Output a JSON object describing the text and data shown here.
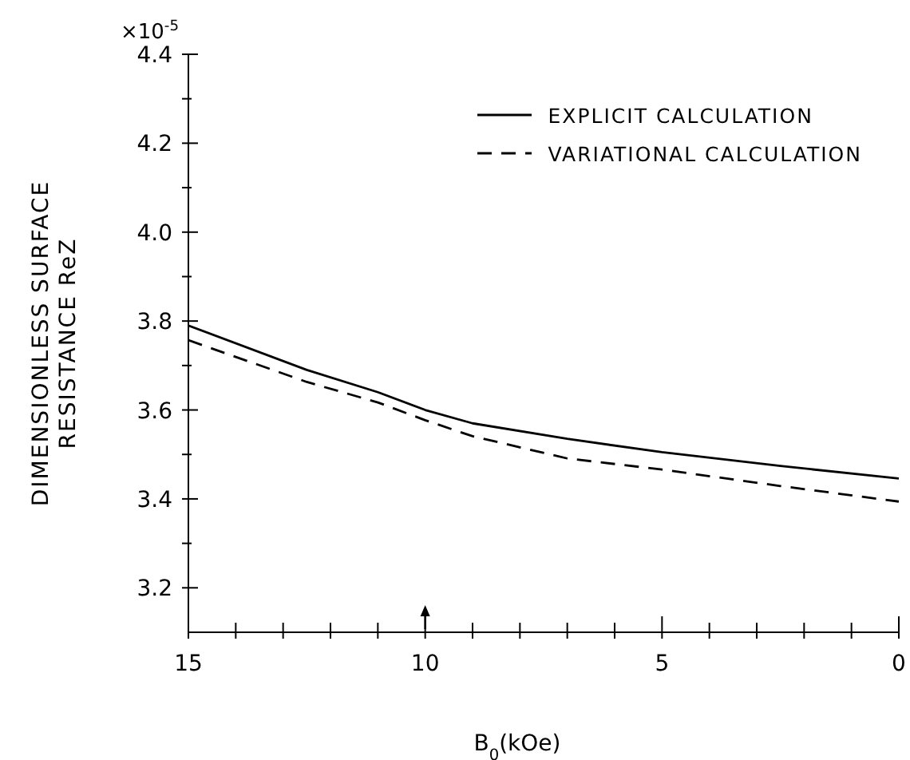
{
  "chart_data": {
    "type": "line",
    "xlabel": "B$_{0}$(kOe)",
    "ylabel": "DIMENSIONLESS SURFACE\nRESISTANCE ReZ",
    "x": [
      15,
      12.5,
      11,
      10,
      9,
      7,
      5,
      2.5,
      0
    ],
    "series": [
      {
        "name": "EXPLICIT CALCULATION",
        "color": "#000000",
        "line_style": "solid",
        "values": [
          3.79,
          3.69,
          3.64,
          3.6,
          3.57,
          3.535,
          3.505,
          3.474,
          3.446
        ]
      },
      {
        "name": "VARIATIONAL CALCULATION",
        "color": "#000000",
        "line_style": "dashed",
        "values": [
          3.757,
          3.663,
          3.617,
          3.577,
          3.541,
          3.491,
          3.466,
          3.429,
          3.394
        ]
      }
    ],
    "xlim": [
      15,
      0
    ],
    "xticks": [
      15,
      {
        "value": 14,
        "label": null
      },
      {
        "value": 13,
        "label": null
      },
      {
        "value": 12,
        "label": null
      },
      {
        "value": 11,
        "label": null
      },
      10,
      {
        "value": 9,
        "label": null
      },
      {
        "value": 8,
        "label": null
      },
      {
        "value": 7,
        "label": null
      },
      {
        "value": 6,
        "label": null
      },
      5,
      {
        "value": 4,
        "label": null
      },
      {
        "value": 3,
        "label": null
      },
      {
        "value": 2,
        "label": null
      },
      {
        "value": 1,
        "label": null
      },
      0
    ],
    "ylim": [
      3.1,
      4.4
    ],
    "yticks": [
      3.2,
      {
        "value": 3.3,
        "label": null
      },
      3.4,
      {
        "value": 3.5,
        "label": null
      },
      3.6,
      {
        "value": 3.7,
        "label": null
      },
      3.8,
      {
        "value": 3.9,
        "label": null
      },
      {
        "value": 4,
        "label": "4.0"
      },
      {
        "value": 4.1,
        "label": null
      },
      4.2,
      {
        "value": 4.3,
        "label": null
      },
      4.4
    ],
    "annotations": [
      "×10$^{-5}$"
    ],
    "grid": false,
    "legend": "top right",
    "marker": "none"
  }
}
